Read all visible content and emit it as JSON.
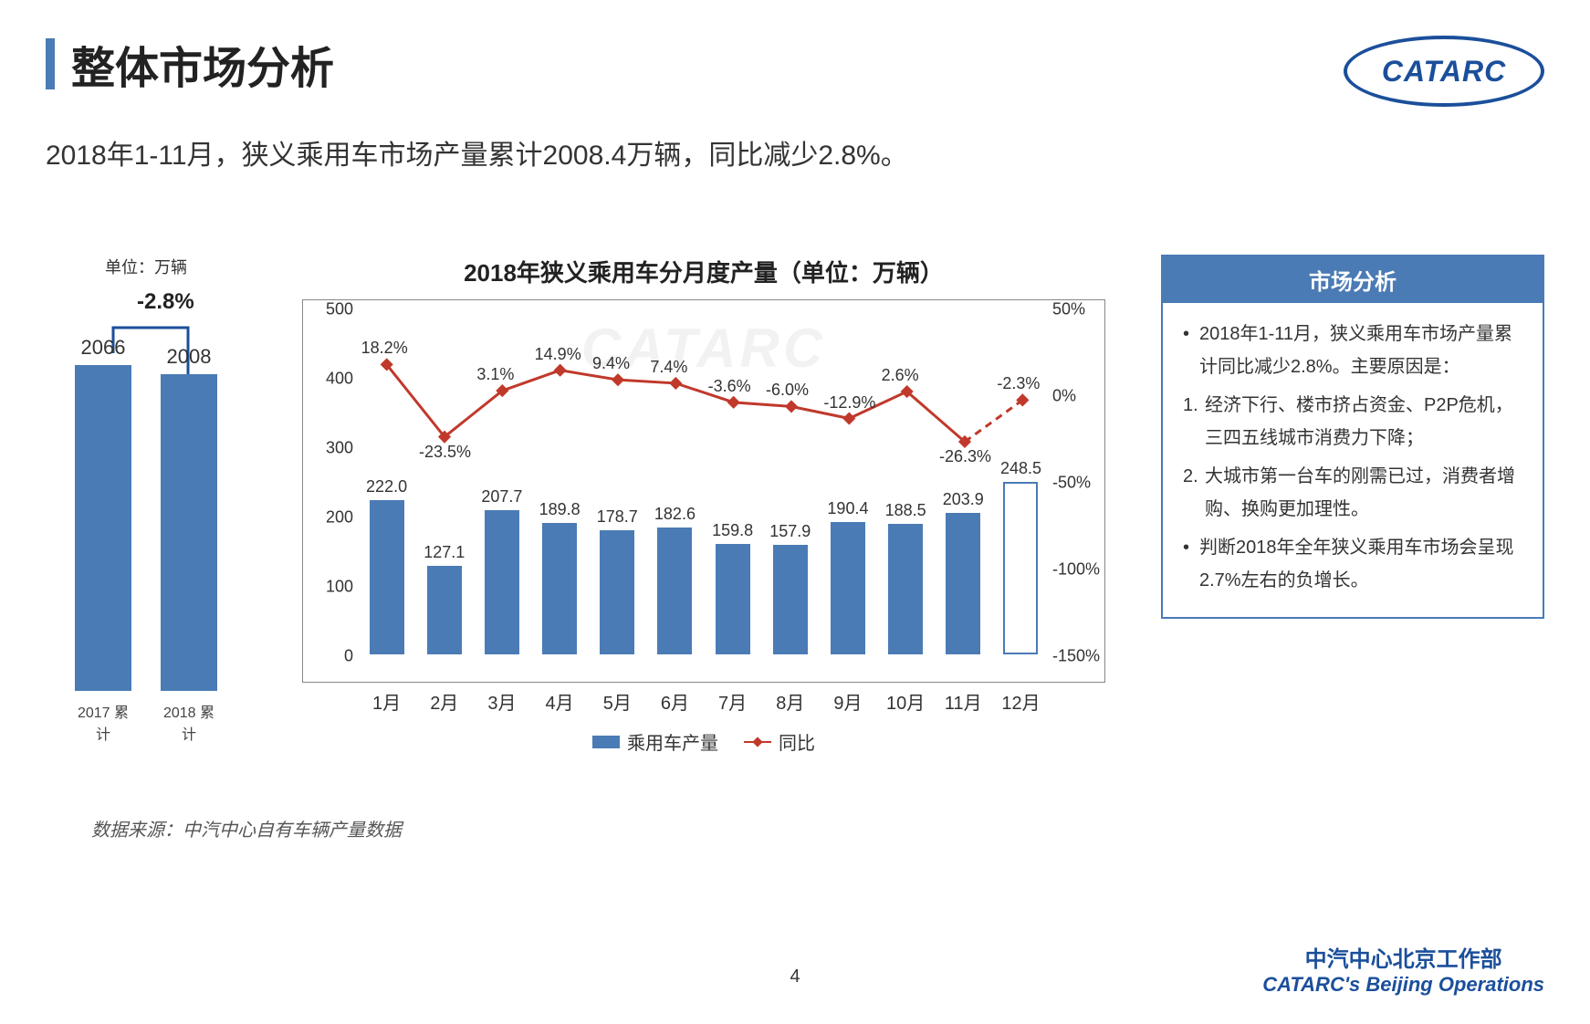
{
  "header": {
    "title": "整体市场分析",
    "logo_text": "CATARC"
  },
  "subtitle": "2018年1-11月，狭义乘用车市场产量累计2008.4万辆，同比减少2.8%。",
  "mini_chart": {
    "unit_label": "单位：万辆",
    "delta_label": "-2.8%",
    "bars": [
      {
        "label": "2017 累计",
        "value": 2066
      },
      {
        "label": "2018 累计",
        "value": 2008
      }
    ],
    "ymax": 2200,
    "bar_color": "#4a7bb5",
    "arrow_color": "#1b4f9b"
  },
  "main_chart": {
    "title": "2018年狭义乘用车分月度产量（单位：万辆）",
    "type": "bar+line",
    "categories": [
      "1月",
      "2月",
      "3月",
      "4月",
      "5月",
      "6月",
      "7月",
      "8月",
      "9月",
      "10月",
      "11月",
      "12月"
    ],
    "bar_values": [
      222.0,
      127.1,
      207.7,
      189.8,
      178.7,
      182.6,
      159.8,
      157.9,
      190.4,
      188.5,
      203.9,
      248.5
    ],
    "bar_labels": [
      "222.0",
      "127.1",
      "207.7",
      "189.8",
      "178.7",
      "182.6",
      "159.8",
      "157.9",
      "190.4",
      "188.5",
      "203.9",
      "248.5"
    ],
    "bar_hollow_last": true,
    "line_values_pct": [
      18.2,
      -23.5,
      3.1,
      14.9,
      9.4,
      7.4,
      -3.6,
      -6.0,
      -12.9,
      2.6,
      -26.3,
      -2.3
    ],
    "line_labels": [
      "18.2%",
      "-23.5%",
      "3.1%",
      "14.9%",
      "9.4%",
      "7.4%",
      "-3.6%",
      "-6.0%",
      "-12.9%",
      "2.6%",
      "-26.3%",
      "-2.3%"
    ],
    "line_dashed_last": true,
    "y_left": {
      "min": 0,
      "max": 500,
      "ticks": [
        0,
        100,
        200,
        300,
        400,
        500
      ]
    },
    "y_right": {
      "min": -150,
      "max": 50,
      "ticks": [
        50,
        0,
        -50,
        -100,
        -150
      ],
      "suffix": "%"
    },
    "bar_color": "#4a7bb5",
    "line_color": "#c0392b",
    "border_color": "#888888",
    "background_color": "#ffffff",
    "watermark": "CATARC",
    "legend": {
      "bar_label": "乘用车产量",
      "line_label": "同比"
    }
  },
  "analysis": {
    "header": "市场分析",
    "items": [
      {
        "type": "bullet",
        "text": "2018年1-11月，狭义乘用车市场产量累计同比减少2.8%。主要原因是："
      },
      {
        "type": "num",
        "num": "1.",
        "text": "经济下行、楼市挤占资金、P2P危机，三四五线城市消费力下降；"
      },
      {
        "type": "num",
        "num": "2.",
        "text": "大城市第一台车的刚需已过，消费者增购、换购更加理性。"
      },
      {
        "type": "bullet",
        "text": "判断2018年全年狭义乘用车市场会呈现2.7%左右的负增长。"
      }
    ],
    "border_color": "#4a7bb5",
    "header_bg": "#4a7bb5"
  },
  "source_note": "数据来源：中汽中心自有车辆产量数据",
  "page_number": "4",
  "footer": {
    "cn": "中汽中心北京工作部",
    "en": "CATARC's Beijing Operations"
  }
}
